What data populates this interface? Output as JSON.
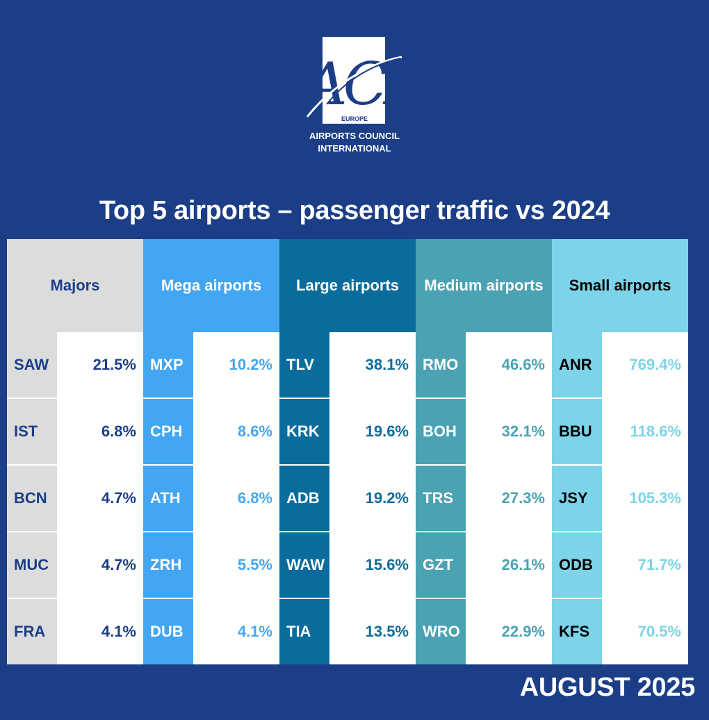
{
  "logo": {
    "letters": "ACI",
    "region": "EUROPE",
    "org_line1": "AIRPORTS COUNCIL",
    "org_line2": "INTERNATIONAL"
  },
  "title": "Top 5 airports – passenger traffic vs 2024",
  "period": "AUGUST 2025",
  "chart_data": {
    "type": "table",
    "title": "Top 5 airports – passenger traffic vs 2024",
    "columns": [
      {
        "name": "Majors",
        "header_color": "#dcdcdc",
        "text_color": "#1b3e87",
        "code_bg": "#dcdcdc",
        "rows": [
          {
            "code": "SAW",
            "value": "21.5%",
            "growth_pct": 21.5
          },
          {
            "code": "IST",
            "value": "6.8%",
            "growth_pct": 6.8
          },
          {
            "code": "BCN",
            "value": "4.7%",
            "growth_pct": 4.7
          },
          {
            "code": "MUC",
            "value": "4.7%",
            "growth_pct": 4.7
          },
          {
            "code": "FRA",
            "value": "4.1%",
            "growth_pct": 4.1
          }
        ]
      },
      {
        "name": "Mega airports",
        "header_color": "#43a6f3",
        "text_color": "#43a6f3",
        "code_bg": "#43a6f3",
        "rows": [
          {
            "code": "MXP",
            "value": "10.2%",
            "growth_pct": 10.2
          },
          {
            "code": "CPH",
            "value": "8.6%",
            "growth_pct": 8.6
          },
          {
            "code": "ATH",
            "value": "6.8%",
            "growth_pct": 6.8
          },
          {
            "code": "ZRH",
            "value": "5.5%",
            "growth_pct": 5.5
          },
          {
            "code": "DUB",
            "value": "4.1%",
            "growth_pct": 4.1
          }
        ]
      },
      {
        "name": "Large airports",
        "header_color": "#0a6c9c",
        "text_color": "#0a6c9c",
        "code_bg": "#0a6c9c",
        "rows": [
          {
            "code": "TLV",
            "value": "38.1%",
            "growth_pct": 38.1
          },
          {
            "code": "KRK",
            "value": "19.6%",
            "growth_pct": 19.6
          },
          {
            "code": "ADB",
            "value": "19.2%",
            "growth_pct": 19.2
          },
          {
            "code": "WAW",
            "value": "15.6%",
            "growth_pct": 15.6
          },
          {
            "code": "TIA",
            "value": "13.5%",
            "growth_pct": 13.5
          }
        ]
      },
      {
        "name": "Medium airports",
        "header_color": "#4aa2b3",
        "text_color": "#4aa2b3",
        "code_bg": "#4aa2b3",
        "rows": [
          {
            "code": "RMO",
            "value": "46.6%",
            "growth_pct": 46.6
          },
          {
            "code": "BOH",
            "value": "32.1%",
            "growth_pct": 32.1
          },
          {
            "code": "TRS",
            "value": "27.3%",
            "growth_pct": 27.3
          },
          {
            "code": "GZT",
            "value": "26.1%",
            "growth_pct": 26.1
          },
          {
            "code": "WRO",
            "value": "22.9%",
            "growth_pct": 22.9
          }
        ]
      },
      {
        "name": "Small airports",
        "header_color": "#7dd3e8",
        "text_color": "#7dd3e8",
        "code_bg": "#7dd3e8",
        "rows": [
          {
            "code": "ANR",
            "value": "769.4%",
            "growth_pct": 769.4
          },
          {
            "code": "BBU",
            "value": "118.6%",
            "growth_pct": 118.6
          },
          {
            "code": "JSY",
            "value": "105.3%",
            "growth_pct": 105.3
          },
          {
            "code": "ODB",
            "value": "71.7%",
            "growth_pct": 71.7
          },
          {
            "code": "KFS",
            "value": "70.5%",
            "growth_pct": 70.5
          }
        ]
      }
    ]
  }
}
